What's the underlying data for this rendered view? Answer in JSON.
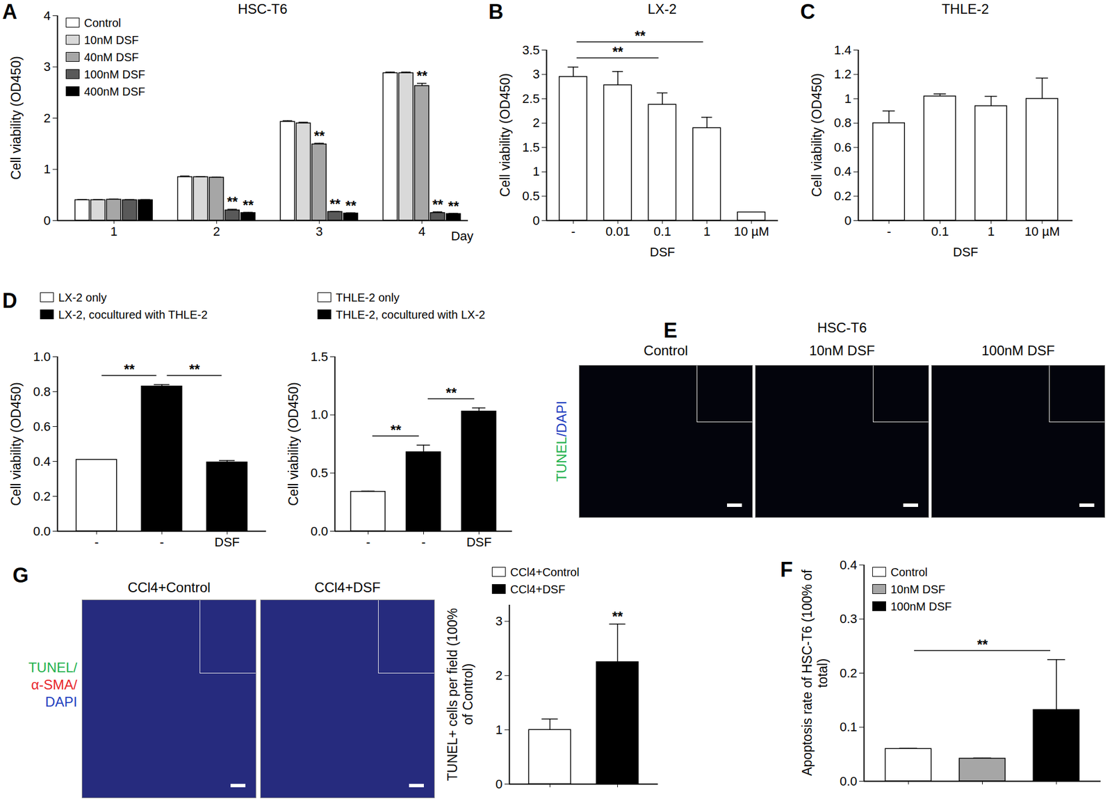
{
  "chart_data": [
    {
      "panel": "A",
      "type": "bar",
      "title": "HSC-T6",
      "categories": [
        "1",
        "2",
        "3",
        "4"
      ],
      "x_label": "Day",
      "y_label": "Cell viability (OD450)",
      "series": [
        {
          "name": "Control",
          "color": "#ffffff",
          "values": [
            0.4,
            0.85,
            1.93,
            2.88
          ],
          "errors": [
            0.01,
            0.02,
            0.02,
            0.02
          ]
        },
        {
          "name": "10nM DSF",
          "color": "#d9d9d9",
          "values": [
            0.4,
            0.85,
            1.9,
            2.88
          ],
          "errors": [
            0.01,
            0.01,
            0.02,
            0.02
          ]
        },
        {
          "name": "40nM DSF",
          "color": "#a6a6a6",
          "values": [
            0.41,
            0.84,
            1.49,
            2.63
          ],
          "errors": [
            0.01,
            0.01,
            0.02,
            0.05
          ]
        },
        {
          "name": "100nM DSF",
          "color": "#595959",
          "values": [
            0.4,
            0.2,
            0.17,
            0.15
          ],
          "errors": [
            0.01,
            0.02,
            0.01,
            0.02
          ]
        },
        {
          "name": "400nM DSF",
          "color": "#000000",
          "values": [
            0.4,
            0.15,
            0.14,
            0.13
          ],
          "errors": [
            0.01,
            0.01,
            0.01,
            0.01
          ]
        }
      ],
      "ylim": [
        0,
        4
      ],
      "yticks": [
        0,
        1,
        2,
        3,
        4
      ],
      "legend": "top-left",
      "annotations": [
        {
          "category": "2",
          "series": "100nM DSF",
          "label": "**"
        },
        {
          "category": "2",
          "series": "400nM DSF",
          "label": "**"
        },
        {
          "category": "3",
          "series": "40nM DSF",
          "label": "**"
        },
        {
          "category": "3",
          "series": "100nM DSF",
          "label": "**"
        },
        {
          "category": "3",
          "series": "400nM DSF",
          "label": "**"
        },
        {
          "category": "4",
          "series": "40nM DSF",
          "label": "**"
        },
        {
          "category": "4",
          "series": "100nM DSF",
          "label": "**"
        },
        {
          "category": "4",
          "series": "400nM DSF",
          "label": "**"
        }
      ]
    },
    {
      "panel": "B",
      "type": "bar",
      "title": "LX-2",
      "categories": [
        "-",
        "0.01",
        "0.1",
        "1",
        "10 µM"
      ],
      "x_label": "DSF",
      "y_label": "Cell viability (OD450)",
      "values": [
        2.95,
        2.78,
        2.38,
        1.9,
        0.17
      ],
      "errors": [
        0.2,
        0.28,
        0.24,
        0.22,
        0
      ],
      "color": "#ffffff",
      "ylim": [
        0,
        3.5
      ],
      "yticks": [
        0,
        0.5,
        1,
        1.5,
        2,
        2.5,
        3,
        3.5
      ],
      "brackets": [
        {
          "from": 0,
          "to": 2,
          "label": "**"
        },
        {
          "from": 0,
          "to": 3,
          "label": "**"
        }
      ]
    },
    {
      "panel": "C",
      "type": "bar",
      "title": "THLE-2",
      "categories": [
        "-",
        "0.1",
        "1",
        "10 µM"
      ],
      "x_label": "DSF",
      "y_label": "Cell viability (OD450)",
      "values": [
        0.8,
        1.02,
        0.94,
        1.0
      ],
      "errors": [
        0.1,
        0.02,
        0.08,
        0.17
      ],
      "color": "#ffffff",
      "ylim": [
        0,
        1.4
      ],
      "yticks": [
        0,
        0.2,
        0.4,
        0.6,
        0.8,
        1,
        1.2,
        1.4
      ]
    },
    {
      "panel": "D",
      "type": "bar",
      "categories": [
        "-",
        "-",
        "DSF"
      ],
      "y_label": "Cell viability (OD450)",
      "series": [
        {
          "name": "LX-2 only",
          "color": "#ffffff",
          "values": [
            0.41,
            null,
            null
          ],
          "errors": [
            0,
            null,
            null
          ]
        },
        {
          "name": "LX-2, cocultured with THLE-2",
          "color": "#000000",
          "values": [
            null,
            0.83,
            0.395
          ],
          "errors": [
            null,
            0.01,
            0.01
          ]
        }
      ],
      "ylim": [
        0,
        1.0
      ],
      "yticks": [
        {
          "value": 0,
          "label": "0.0"
        },
        0.2,
        0.4,
        0.6,
        0.8,
        {
          "value": 1,
          "label": "1.0"
        }
      ],
      "legend": "top",
      "brackets": [
        {
          "from": 0,
          "to": 1,
          "label": "**"
        },
        {
          "from": 1,
          "to": 2,
          "label": "**"
        }
      ]
    },
    {
      "type": "bar",
      "categories": [
        "-",
        "-",
        "DSF"
      ],
      "y_label": "Cell viability (OD450)",
      "series": [
        {
          "name": "THLE-2 only",
          "color": "#ffffff",
          "values": [
            0.34,
            null,
            null
          ],
          "errors": [
            0.005,
            null,
            null
          ]
        },
        {
          "name": "THLE-2, cocultured with LX-2",
          "color": "#000000",
          "values": [
            null,
            0.68,
            1.03
          ],
          "errors": [
            null,
            0.06,
            0.03
          ]
        }
      ],
      "ylim": [
        0,
        1.5
      ],
      "yticks": [
        {
          "value": 0,
          "label": "0.0"
        },
        0.5,
        {
          "value": 1,
          "label": "1.0"
        },
        1.5
      ],
      "legend": "top",
      "brackets": [
        {
          "from": 0,
          "to": 1,
          "label": "**"
        },
        {
          "from": 1,
          "to": 2,
          "label": "**"
        }
      ]
    },
    {
      "panel": "F",
      "type": "bar",
      "categories": [
        null,
        null,
        null
      ],
      "y_label": "Apoptosis rate of HSC-T6 (100% of total)",
      "series": [
        {
          "name": "Control",
          "color": "#ffffff",
          "values": [
            0.06,
            null,
            null
          ],
          "errors": [
            0.001,
            null,
            null
          ]
        },
        {
          "name": "10nM DSF",
          "color": "#a6a6a6",
          "values": [
            null,
            0.042,
            null
          ],
          "errors": [
            null,
            0.001,
            null
          ]
        },
        {
          "name": "100nM DSF",
          "color": "#000000",
          "values": [
            null,
            null,
            0.132
          ],
          "errors": [
            null,
            null,
            0.093
          ]
        }
      ],
      "ylim": [
        0,
        0.4
      ],
      "yticks": [
        {
          "value": 0,
          "label": "0.0"
        },
        0.1,
        0.2,
        0.3,
        0.4
      ],
      "legend": "top-left",
      "brackets": [
        {
          "from": 0,
          "to": 2,
          "label": "**"
        }
      ]
    },
    {
      "type": "bar",
      "categories": [
        null,
        null
      ],
      "y_label": "TUNEL+ cells per field (100% of Control)",
      "series": [
        {
          "name": "CCl4+Control",
          "color": "#ffffff",
          "values": [
            1.0,
            null
          ],
          "errors": [
            0.2,
            null
          ]
        },
        {
          "name": "CCl4+DSF",
          "color": "#000000",
          "values": [
            null,
            2.25
          ],
          "errors": [
            null,
            0.7
          ]
        }
      ],
      "ylim": [
        0,
        3.3
      ],
      "yticks": [
        0,
        1,
        2,
        3
      ],
      "legend": "top",
      "annotations": [
        {
          "series": "CCl4+DSF",
          "label": "**"
        }
      ]
    }
  ],
  "image_panels": [
    {
      "panel": "E",
      "title": "HSC-T6",
      "columns": [
        "Control",
        "10nM DSF",
        "100nM DSF"
      ],
      "stain_label": [
        {
          "text": "TUNEL",
          "color": "#22b14c"
        },
        {
          "text": "/DAPI",
          "color": "#1f3fbf"
        }
      ]
    },
    {
      "panel": "G",
      "columns": [
        "CCl4+Control",
        "CCl4+DSF"
      ],
      "stain_label": [
        {
          "text": "TUNEL/",
          "color": "#22b14c"
        },
        {
          "text": "α-SMA/",
          "color": "#e8262b"
        },
        {
          "text": "DAPI",
          "color": "#1f3fbf"
        }
      ]
    }
  ]
}
